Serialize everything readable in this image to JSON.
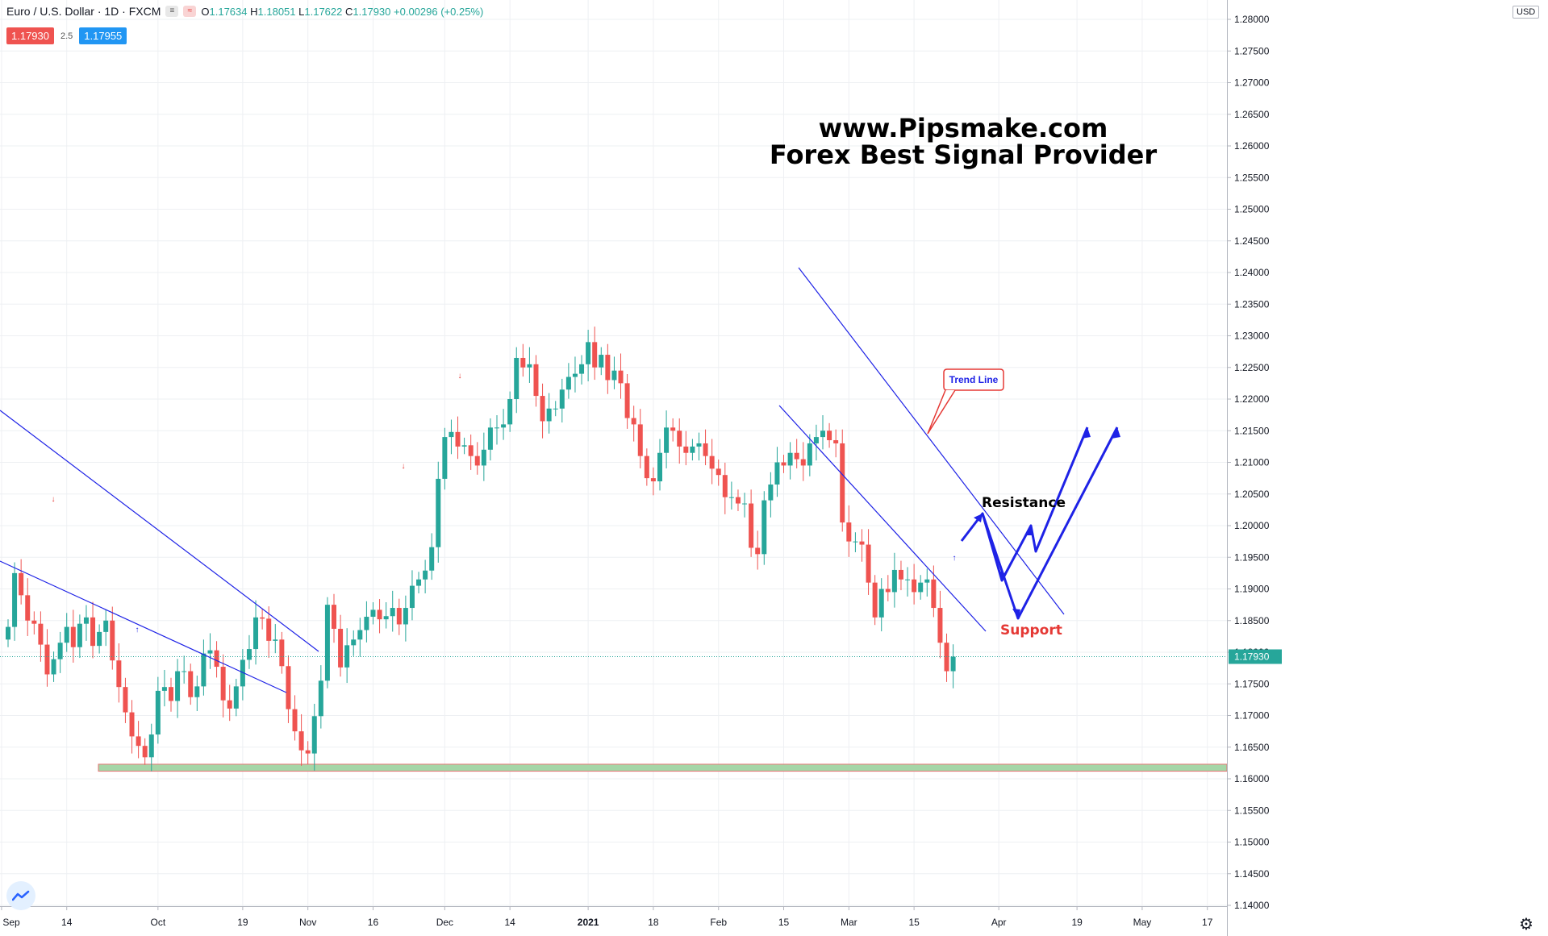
{
  "header": {
    "symbol": "Euro / U.S. Dollar · 1D · FXCM",
    "btn1": "≡",
    "btn2": "≈",
    "ohlc": {
      "o_label": "O",
      "o": "1.17634",
      "h_label": "H",
      "h": "1.18051",
      "l_label": "L",
      "l": "1.17622",
      "c_label": "C",
      "c": "1.17930",
      "change": "+0.00296 (+0.25%)"
    },
    "sell_price": "1.17930",
    "spread": "2.5",
    "buy_price": "1.17955"
  },
  "watermark": {
    "line1": "www.Pipsmake.com",
    "line2": "Forex Best Signal Provider"
  },
  "currency_label": "USD",
  "colors": {
    "up": "#26a69a",
    "down": "#ef5350",
    "drawing": "#1e22e6",
    "support_fill": "#a5d6a7",
    "support_border": "#e57373",
    "grid": "#eef0f3"
  },
  "chart_data": {
    "type": "candlestick",
    "ylim": [
      1.1355,
      1.2825
    ],
    "current_price": "1.17930",
    "y_ticks": [
      "1.28000",
      "1.27500",
      "1.27000",
      "1.26500",
      "1.26000",
      "1.25500",
      "1.25000",
      "1.24500",
      "1.24000",
      "1.23500",
      "1.23000",
      "1.22500",
      "1.22000",
      "1.21500",
      "1.21000",
      "1.20500",
      "1.20000",
      "1.19500",
      "1.19000",
      "1.18500",
      "1.18000",
      "1.17500",
      "1.17000",
      "1.16500",
      "1.16000",
      "1.15500",
      "1.15000",
      "1.14500",
      "1.14000"
    ],
    "x_ticks": [
      {
        "label": "Sep",
        "bar": -1
      },
      {
        "label": "14",
        "bar": 9
      },
      {
        "label": "Oct",
        "bar": 23
      },
      {
        "label": "19",
        "bar": 36
      },
      {
        "label": "Nov",
        "bar": 46
      },
      {
        "label": "16",
        "bar": 56
      },
      {
        "label": "Dec",
        "bar": 67
      },
      {
        "label": "14",
        "bar": 77
      },
      {
        "label": "2021",
        "bar": 89
      },
      {
        "label": "18",
        "bar": 99
      },
      {
        "label": "Feb",
        "bar": 109
      },
      {
        "label": "15",
        "bar": 119
      },
      {
        "label": "Mar",
        "bar": 129
      },
      {
        "label": "15",
        "bar": 139
      },
      {
        "label": "Apr",
        "bar": 152
      },
      {
        "label": "19",
        "bar": 164
      },
      {
        "label": "May",
        "bar": 174
      },
      {
        "label": "17",
        "bar": 184
      }
    ],
    "closes": [
      1.184,
      1.1925,
      1.189,
      1.185,
      1.1845,
      1.1812,
      1.1765,
      1.1789,
      1.1815,
      1.184,
      1.1808,
      1.1845,
      1.1855,
      1.181,
      1.1832,
      1.185,
      1.1787,
      1.1745,
      1.1705,
      1.1667,
      1.1652,
      1.1634,
      1.167,
      1.1739,
      1.1745,
      1.1723,
      1.177,
      1.177,
      1.1729,
      1.1746,
      1.1798,
      1.1803,
      1.1777,
      1.1724,
      1.1711,
      1.1746,
      1.1788,
      1.1805,
      1.1855,
      1.1853,
      1.1818,
      1.182,
      1.1778,
      1.171,
      1.1675,
      1.1645,
      1.164,
      1.1699,
      1.1755,
      1.1875,
      1.1837,
      1.1776,
      1.1811,
      1.182,
      1.1835,
      1.1856,
      1.1867,
      1.1852,
      1.1857,
      1.187,
      1.1844,
      1.187,
      1.1905,
      1.1915,
      1.1929,
      1.1966,
      1.2074,
      1.214,
      1.2148,
      1.2125,
      1.2127,
      1.211,
      1.2095,
      1.212,
      1.2155,
      1.2155,
      1.216,
      1.22,
      1.2265,
      1.225,
      1.2255,
      1.2205,
      1.2165,
      1.2185,
      1.2185,
      1.2215,
      1.2235,
      1.224,
      1.2255,
      1.229,
      1.225,
      1.227,
      1.223,
      1.2245,
      1.2225,
      1.217,
      1.216,
      1.211,
      1.2075,
      1.207,
      1.2115,
      1.2155,
      1.215,
      1.2125,
      1.2115,
      1.2125,
      1.213,
      1.211,
      1.209,
      1.208,
      1.2045,
      1.2045,
      1.2035,
      1.2035,
      1.1965,
      1.1955,
      1.204,
      1.2065,
      1.21,
      1.2095,
      1.2115,
      1.2105,
      1.2095,
      1.213,
      1.214,
      1.215,
      1.2135,
      1.213,
      1.2005,
      1.1975,
      1.1975,
      1.197,
      1.191,
      1.1855,
      1.19,
      1.1895,
      1.193,
      1.1915,
      1.1915,
      1.1895,
      1.191,
      1.1915,
      1.187,
      1.1815,
      1.177,
      1.1793
    ]
  },
  "annotations": {
    "trend_line": "Trend Line",
    "resistance": "Resistance",
    "support": "Support"
  }
}
